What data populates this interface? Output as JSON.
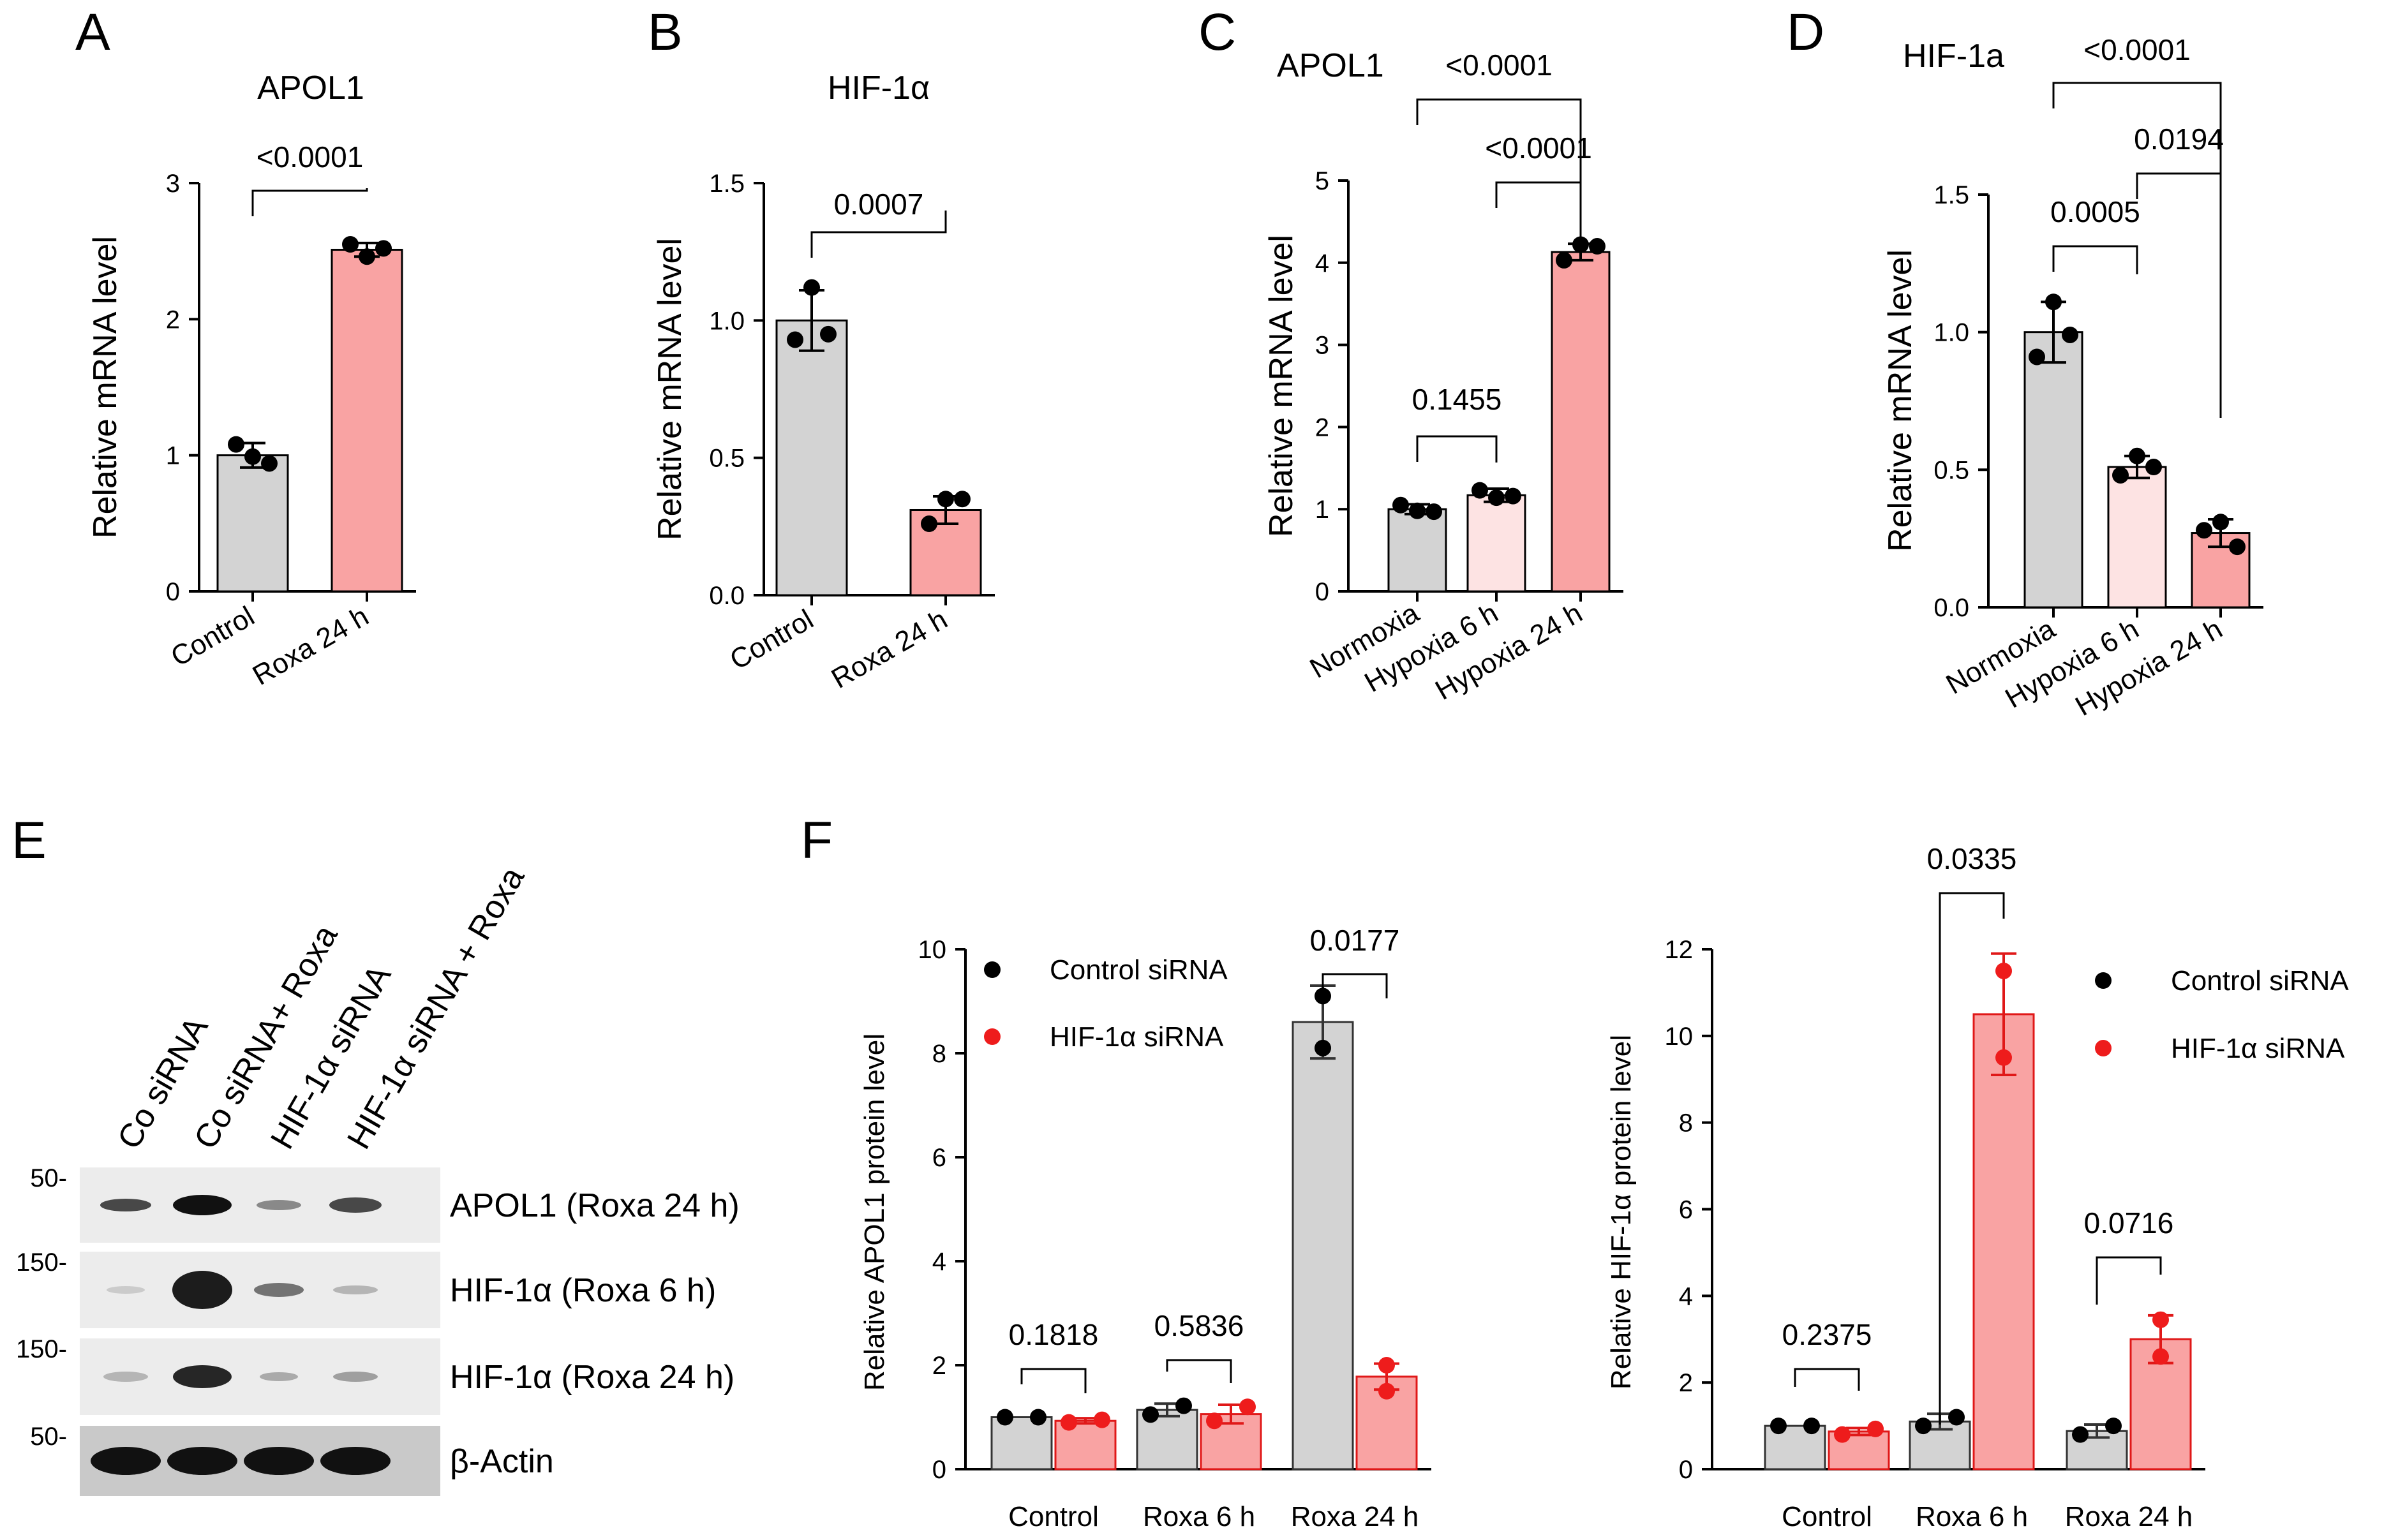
{
  "colors": {
    "gray": "#d3d3d3",
    "light_pink": "#fde3e3",
    "pink": "#f9a3a3",
    "dot_black": "#000000",
    "dot_red": "#ee1c1c",
    "bar_edge_gray": "#333333",
    "bar_edge_red": "#e01818"
  },
  "panel_letters": [
    "A",
    "B",
    "C",
    "D",
    "E",
    "F"
  ],
  "chart_data": [
    {
      "panel": "A",
      "type": "bar",
      "title": "APOL1",
      "ylabel": "Relative mRNA level",
      "ylim": [
        0,
        3
      ],
      "ticks": [
        "0",
        "1",
        "2",
        "3"
      ],
      "categories": [
        "Control",
        "Roxa 24 h"
      ],
      "values": [
        1.0,
        2.51
      ],
      "error": [
        0.09,
        0.05
      ],
      "points": [
        [
          0.99,
          1.08,
          0.94
        ],
        [
          2.46,
          2.55,
          2.52
        ]
      ],
      "comparisons": [
        {
          "from": 0,
          "to": 1,
          "label": "<0.0001"
        }
      ]
    },
    {
      "panel": "B",
      "type": "bar",
      "title": "HIF-1α",
      "ylabel": "Relative mRNA level",
      "ylim": [
        0,
        1.5
      ],
      "ticks": [
        "0.0",
        "0.5",
        "1.0",
        "1.5"
      ],
      "categories": [
        "Control",
        "Roxa 24 h"
      ],
      "values": [
        1.0,
        0.31
      ],
      "error": [
        0.11,
        0.05
      ],
      "points": [
        [
          1.12,
          0.93,
          0.95
        ],
        [
          0.35,
          0.26,
          0.35
        ]
      ],
      "comparisons": [
        {
          "from": 0,
          "to": 1,
          "label": "0.0007"
        }
      ]
    },
    {
      "panel": "C",
      "type": "bar",
      "title": "APOL1",
      "ylabel": "Relative mRNA level",
      "ylim": [
        0,
        5
      ],
      "ticks": [
        "0",
        "1",
        "2",
        "3",
        "4",
        "5"
      ],
      "categories": [
        "Normoxia",
        "Hypoxia 6 h",
        "Hypoxia 24 h"
      ],
      "values": [
        1.0,
        1.17,
        4.13
      ],
      "error": [
        0.06,
        0.08,
        0.1
      ],
      "points": [
        [
          0.98,
          1.05,
          0.97
        ],
        [
          1.14,
          1.23,
          1.16
        ],
        [
          4.22,
          4.03,
          4.2
        ]
      ],
      "comparisons": [
        {
          "from": 0,
          "to": 1,
          "label": "0.1455"
        },
        {
          "from": 1,
          "to": 2,
          "label": "<0.0001"
        },
        {
          "from": 0,
          "to": 2,
          "label": "<0.0001"
        }
      ]
    },
    {
      "panel": "D",
      "type": "bar",
      "title": "HIF-1a",
      "ylabel": "Relative mRNA level",
      "ylim": [
        0,
        1.5
      ],
      "ticks": [
        "0.0",
        "0.5",
        "1.0",
        "1.5"
      ],
      "categories": [
        "Normoxia",
        "Hypoxia 6 h",
        "Hypoxia 24 h"
      ],
      "values": [
        1.0,
        0.51,
        0.27
      ],
      "error": [
        0.11,
        0.04,
        0.05
      ],
      "points": [
        [
          1.11,
          0.91,
          0.99
        ],
        [
          0.55,
          0.48,
          0.51
        ],
        [
          0.31,
          0.28,
          0.22
        ]
      ],
      "comparisons": [
        {
          "from": 0,
          "to": 1,
          "label": "0.0005"
        },
        {
          "from": 1,
          "to": 2,
          "label": "0.0194"
        },
        {
          "from": 0,
          "to": 2,
          "label": "<0.0001"
        }
      ]
    },
    {
      "panel": "F",
      "type": "bar",
      "ylabel": "Relative APOL1 protein level",
      "ylim": [
        0,
        10
      ],
      "ticks": [
        "0",
        "2",
        "4",
        "6",
        "8",
        "10"
      ],
      "categories": [
        "Control",
        "Roxa 6 h",
        "Roxa 24 h"
      ],
      "legend": "top-left",
      "series": [
        {
          "name": "Control siRNA",
          "values": [
            1.0,
            1.14,
            8.6
          ],
          "error": [
            0,
            0.12,
            0.7
          ],
          "points": [
            [
              1.0,
              1.0
            ],
            [
              1.05,
              1.22
            ],
            [
              8.1,
              9.1
            ]
          ]
        },
        {
          "name": "HIF-1α siRNA",
          "values": [
            0.93,
            1.06,
            1.78
          ],
          "error": [
            0.05,
            0.18,
            0.25
          ],
          "points": [
            [
              0.9,
              0.95
            ],
            [
              0.93,
              1.2
            ],
            [
              1.5,
              2.0
            ]
          ]
        }
      ],
      "comparisons": [
        "0.1818",
        "0.5836",
        "0.0177"
      ]
    },
    {
      "panel": "F2",
      "type": "bar",
      "ylabel": "Relative HIF-1α protein level",
      "ylim": [
        0,
        12
      ],
      "ticks": [
        "0",
        "2",
        "4",
        "6",
        "8",
        "10",
        "12"
      ],
      "categories": [
        "Control",
        "Roxa 6 h",
        "Roxa 24 h"
      ],
      "legend": "top-right",
      "series": [
        {
          "name": "Control siRNA",
          "values": [
            1.0,
            1.1,
            0.88
          ],
          "error": [
            0,
            0.18,
            0.15
          ],
          "points": [
            [
              1.0,
              1.0
            ],
            [
              1.0,
              1.2
            ],
            [
              0.8,
              1.0
            ]
          ]
        },
        {
          "name": "HIF-1α siRNA",
          "values": [
            0.87,
            10.5,
            3.0
          ],
          "error": [
            0.08,
            1.4,
            0.55
          ],
          "points": [
            [
              0.8,
              0.93
            ],
            [
              9.5,
              11.5
            ],
            [
              2.6,
              3.45
            ]
          ]
        }
      ],
      "comparisons": [
        "0.2375",
        "0.0335",
        "0.0716"
      ]
    }
  ],
  "blot": {
    "lanes": [
      "Co siRNA",
      "Co siRNA+ Roxa",
      "HIF-1α siRNA",
      "HIF-1α siRNA + Roxa"
    ],
    "rows": [
      {
        "marker": "50-",
        "label": "APOL1 (Roxa 24 h)"
      },
      {
        "marker": "150-",
        "label": "HIF-1α (Roxa 6 h)"
      },
      {
        "marker": "150-",
        "label": "HIF-1α (Roxa 24 h)"
      },
      {
        "marker": "50-",
        "label": "β-Actin"
      }
    ]
  }
}
